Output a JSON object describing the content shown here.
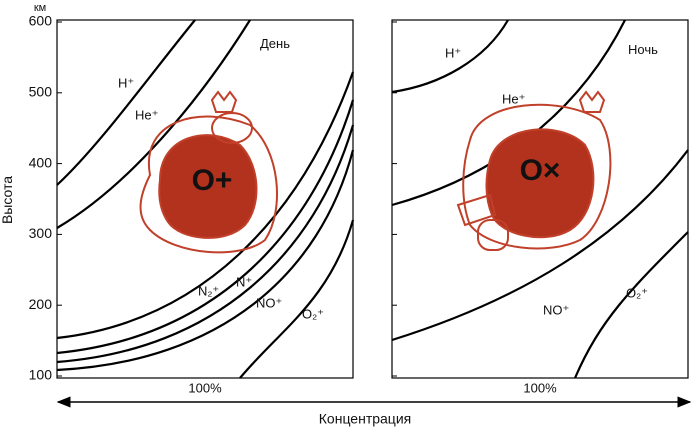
{
  "y_axis": {
    "title": "Высота",
    "unit": "км",
    "ticks": [
      "600",
      "500",
      "400",
      "300",
      "200",
      "100"
    ]
  },
  "x_axis": {
    "title": "Концентрация"
  },
  "panels": [
    {
      "title": "День",
      "label": "",
      "main_ion": "O+",
      "x_label": "100%",
      "ions": [
        "H⁺",
        "He⁺",
        "N₂⁺",
        "N⁺",
        "NO⁺",
        "O₂⁺"
      ]
    },
    {
      "title": "Ночь",
      "main_ion": "O×",
      "x_label": "100%",
      "ions": [
        "H⁺",
        "He⁺",
        "NO⁺",
        "O₂⁺"
      ]
    }
  ]
}
